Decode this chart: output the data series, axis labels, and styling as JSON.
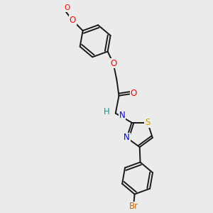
{
  "background_color": "#ebebeb",
  "bond_color": "#1a1a1a",
  "atom_colors": {
    "O": "#ff0000",
    "N": "#0000dd",
    "S": "#ccaa00",
    "Br": "#cc6600",
    "C": "#1a1a1a",
    "H": "#009999"
  },
  "font_size": 8.5,
  "lw": 1.4,
  "figsize": [
    3.0,
    3.0
  ],
  "dpi": 100,
  "xlim": [
    1.5,
    8.5
  ],
  "ylim": [
    0.3,
    9.7
  ]
}
